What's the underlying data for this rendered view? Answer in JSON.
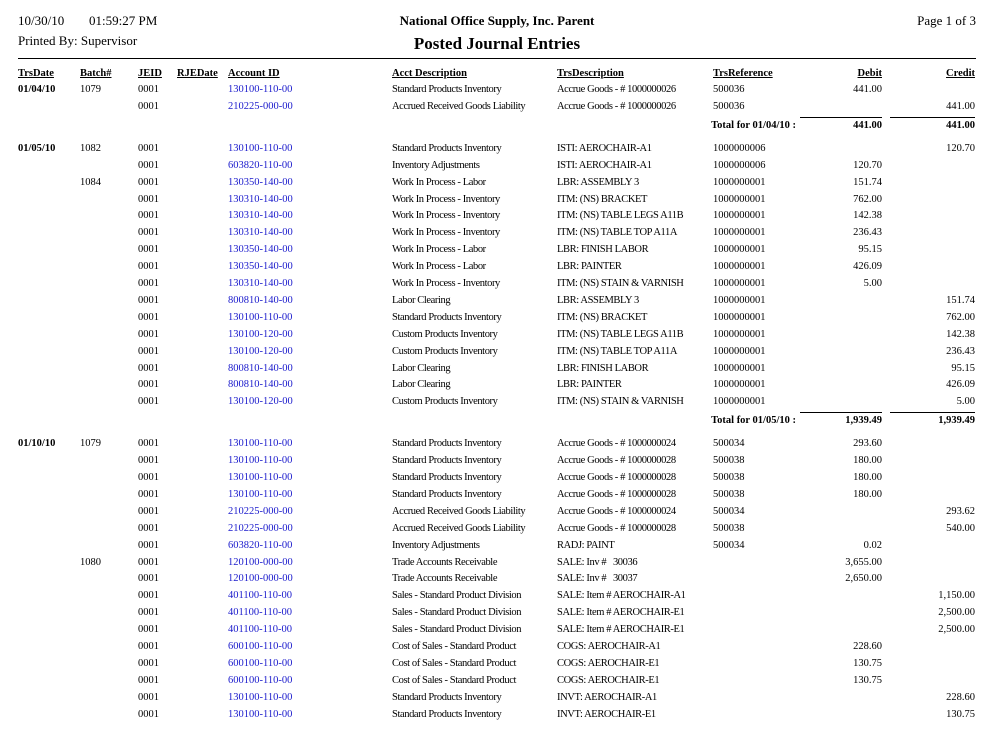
{
  "header": {
    "date": "10/30/10",
    "time": "01:59:27 PM",
    "company": "National Office Supply, Inc. Parent",
    "page": "Page 1 of 3",
    "printed_by": "Printed By: Supervisor",
    "title": "Posted Journal Entries"
  },
  "table": {
    "columns": {
      "date": "TrsDate",
      "batch": "Batch#",
      "jeid": "JEID",
      "rjedate": "RJEDate",
      "account": "Account ID",
      "acct_desc": "Acct Description",
      "trs_desc": "TrsDescription",
      "ref": "TrsReference",
      "debit": "Debit",
      "credit": "Credit"
    },
    "groups": [
      {
        "rows": [
          {
            "date": "01/04/10",
            "batch": "1079",
            "jeid": "0001",
            "account": "130100-110-00",
            "acct_desc": "Standard Products Inventory",
            "trs_desc": "Accrue Goods - # 1000000026",
            "ref": "500036",
            "debit": "441.00"
          },
          {
            "jeid": "0001",
            "account": "210225-000-00",
            "acct_desc": "Accrued Received Goods Liability",
            "trs_desc": "Accrue Goods - # 1000000026",
            "ref": "500036",
            "credit": "441.00"
          }
        ],
        "total": {
          "label": "Total for 01/04/10 :",
          "debit": "441.00",
          "credit": "441.00"
        }
      },
      {
        "rows": [
          {
            "date": "01/05/10",
            "batch": "1082",
            "jeid": "0001",
            "account": "130100-110-00",
            "acct_desc": "Standard Products Inventory",
            "trs_desc": "ISTI: AEROCHAIR-A1",
            "ref": "1000000006",
            "credit": "120.70"
          },
          {
            "jeid": "0001",
            "account": "603820-110-00",
            "acct_desc": "Inventory Adjustments",
            "trs_desc": "ISTI: AEROCHAIR-A1",
            "ref": "1000000006",
            "debit": "120.70"
          },
          {
            "batch": "1084",
            "jeid": "0001",
            "account": "130350-140-00",
            "acct_desc": "Work In Process - Labor",
            "trs_desc": "LBR: ASSEMBLY 3",
            "ref": "1000000001",
            "debit": "151.74"
          },
          {
            "jeid": "0001",
            "account": "130310-140-00",
            "acct_desc": "Work In Process - Inventory",
            "trs_desc": "ITM: (NS) BRACKET",
            "ref": "1000000001",
            "debit": "762.00"
          },
          {
            "jeid": "0001",
            "account": "130310-140-00",
            "acct_desc": "Work In Process - Inventory",
            "trs_desc": "ITM: (NS) TABLE LEGS A11B",
            "ref": "1000000001",
            "debit": "142.38"
          },
          {
            "jeid": "0001",
            "account": "130310-140-00",
            "acct_desc": "Work In Process - Inventory",
            "trs_desc": "ITM: (NS) TABLE TOP A11A",
            "ref": "1000000001",
            "debit": "236.43"
          },
          {
            "jeid": "0001",
            "account": "130350-140-00",
            "acct_desc": "Work In Process - Labor",
            "trs_desc": "LBR: FINISH LABOR",
            "ref": "1000000001",
            "debit": "95.15"
          },
          {
            "jeid": "0001",
            "account": "130350-140-00",
            "acct_desc": "Work In Process - Labor",
            "trs_desc": "LBR: PAINTER",
            "ref": "1000000001",
            "debit": "426.09"
          },
          {
            "jeid": "0001",
            "account": "130310-140-00",
            "acct_desc": "Work In Process - Inventory",
            "trs_desc": "ITM: (NS) STAIN & VARNISH",
            "ref": "1000000001",
            "debit": "5.00"
          },
          {
            "jeid": "0001",
            "account": "800810-140-00",
            "acct_desc": "Labor Clearing",
            "trs_desc": "LBR: ASSEMBLY 3",
            "ref": "1000000001",
            "credit": "151.74"
          },
          {
            "jeid": "0001",
            "account": "130100-110-00",
            "acct_desc": "Standard Products Inventory",
            "trs_desc": "ITM: (NS) BRACKET",
            "ref": "1000000001",
            "credit": "762.00"
          },
          {
            "jeid": "0001",
            "account": "130100-120-00",
            "acct_desc": "Custom Products Inventory",
            "trs_desc": "ITM: (NS) TABLE LEGS A11B",
            "ref": "1000000001",
            "credit": "142.38"
          },
          {
            "jeid": "0001",
            "account": "130100-120-00",
            "acct_desc": "Custom Products Inventory",
            "trs_desc": "ITM: (NS) TABLE TOP A11A",
            "ref": "1000000001",
            "credit": "236.43"
          },
          {
            "jeid": "0001",
            "account": "800810-140-00",
            "acct_desc": "Labor Clearing",
            "trs_desc": "LBR: FINISH LABOR",
            "ref": "1000000001",
            "credit": "95.15"
          },
          {
            "jeid": "0001",
            "account": "800810-140-00",
            "acct_desc": "Labor Clearing",
            "trs_desc": "LBR: PAINTER",
            "ref": "1000000001",
            "credit": "426.09"
          },
          {
            "jeid": "0001",
            "account": "130100-120-00",
            "acct_desc": "Custom Products Inventory",
            "trs_desc": "ITM: (NS) STAIN & VARNISH",
            "ref": "1000000001",
            "credit": "5.00"
          }
        ],
        "total": {
          "label": "Total for 01/05/10 :",
          "debit": "1,939.49",
          "credit": "1,939.49"
        }
      },
      {
        "rows": [
          {
            "date": "01/10/10",
            "batch": "1079",
            "jeid": "0001",
            "account": "130100-110-00",
            "acct_desc": "Standard Products Inventory",
            "trs_desc": "Accrue Goods - # 1000000024",
            "ref": "500034",
            "debit": "293.60"
          },
          {
            "jeid": "0001",
            "account": "130100-110-00",
            "acct_desc": "Standard Products Inventory",
            "trs_desc": "Accrue Goods - # 1000000028",
            "ref": "500038",
            "debit": "180.00"
          },
          {
            "jeid": "0001",
            "account": "130100-110-00",
            "acct_desc": "Standard Products Inventory",
            "trs_desc": "Accrue Goods - # 1000000028",
            "ref": "500038",
            "debit": "180.00"
          },
          {
            "jeid": "0001",
            "account": "130100-110-00",
            "acct_desc": "Standard Products Inventory",
            "trs_desc": "Accrue Goods - # 1000000028",
            "ref": "500038",
            "debit": "180.00"
          },
          {
            "jeid": "0001",
            "account": "210225-000-00",
            "acct_desc": "Accrued Received Goods Liability",
            "trs_desc": "Accrue Goods - # 1000000024",
            "ref": "500034",
            "credit": "293.62"
          },
          {
            "jeid": "0001",
            "account": "210225-000-00",
            "acct_desc": "Accrued Received Goods Liability",
            "trs_desc": "Accrue Goods - # 1000000028",
            "ref": "500038",
            "credit": "540.00"
          },
          {
            "jeid": "0001",
            "account": "603820-110-00",
            "acct_desc": "Inventory Adjustments",
            "trs_desc": "RADJ: PAINT",
            "ref": "500034",
            "debit": "0.02"
          },
          {
            "batch": "1080",
            "jeid": "0001",
            "account": "120100-000-00",
            "acct_desc": "Trade Accounts Receivable",
            "trs_desc": "SALE: Inv #   30036",
            "debit": "3,655.00"
          },
          {
            "jeid": "0001",
            "account": "120100-000-00",
            "acct_desc": "Trade Accounts Receivable",
            "trs_desc": "SALE: Inv #   30037",
            "debit": "2,650.00"
          },
          {
            "jeid": "0001",
            "account": "401100-110-00",
            "acct_desc": "Sales - Standard Product Division",
            "trs_desc": "SALE: Item # AEROCHAIR-A1",
            "credit": "1,150.00"
          },
          {
            "jeid": "0001",
            "account": "401100-110-00",
            "acct_desc": "Sales - Standard Product Division",
            "trs_desc": "SALE: Item # AEROCHAIR-E1",
            "credit": "2,500.00"
          },
          {
            "jeid": "0001",
            "account": "401100-110-00",
            "acct_desc": "Sales - Standard Product Division",
            "trs_desc": "SALE: Item # AEROCHAIR-E1",
            "credit": "2,500.00"
          },
          {
            "jeid": "0001",
            "account": "600100-110-00",
            "acct_desc": "Cost of Sales - Standard Product",
            "trs_desc": "COGS: AEROCHAIR-A1",
            "debit": "228.60"
          },
          {
            "jeid": "0001",
            "account": "600100-110-00",
            "acct_desc": "Cost of Sales - Standard Product",
            "trs_desc": "COGS: AEROCHAIR-E1",
            "debit": "130.75"
          },
          {
            "jeid": "0001",
            "account": "600100-110-00",
            "acct_desc": "Cost of Sales - Standard Product",
            "trs_desc": "COGS: AEROCHAIR-E1",
            "debit": "130.75"
          },
          {
            "jeid": "0001",
            "account": "130100-110-00",
            "acct_desc": "Standard Products Inventory",
            "trs_desc": "INVT: AEROCHAIR-A1",
            "credit": "228.60"
          },
          {
            "jeid": "0001",
            "account": "130100-110-00",
            "acct_desc": "Standard Products Inventory",
            "trs_desc": "INVT: AEROCHAIR-E1",
            "credit": "130.75"
          }
        ]
      }
    ]
  }
}
